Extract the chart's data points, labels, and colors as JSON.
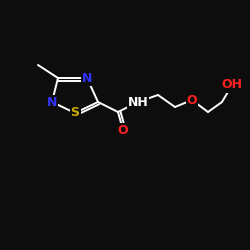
{
  "bg_color": "#0d0d0d",
  "bond_color": "#ffffff",
  "atom_colors": {
    "N": "#3333ff",
    "O": "#ff2020",
    "S": "#ccaa00",
    "H": "#ffffff",
    "C": "#ffffff"
  },
  "figsize": [
    2.5,
    2.5
  ],
  "dpi": 100
}
